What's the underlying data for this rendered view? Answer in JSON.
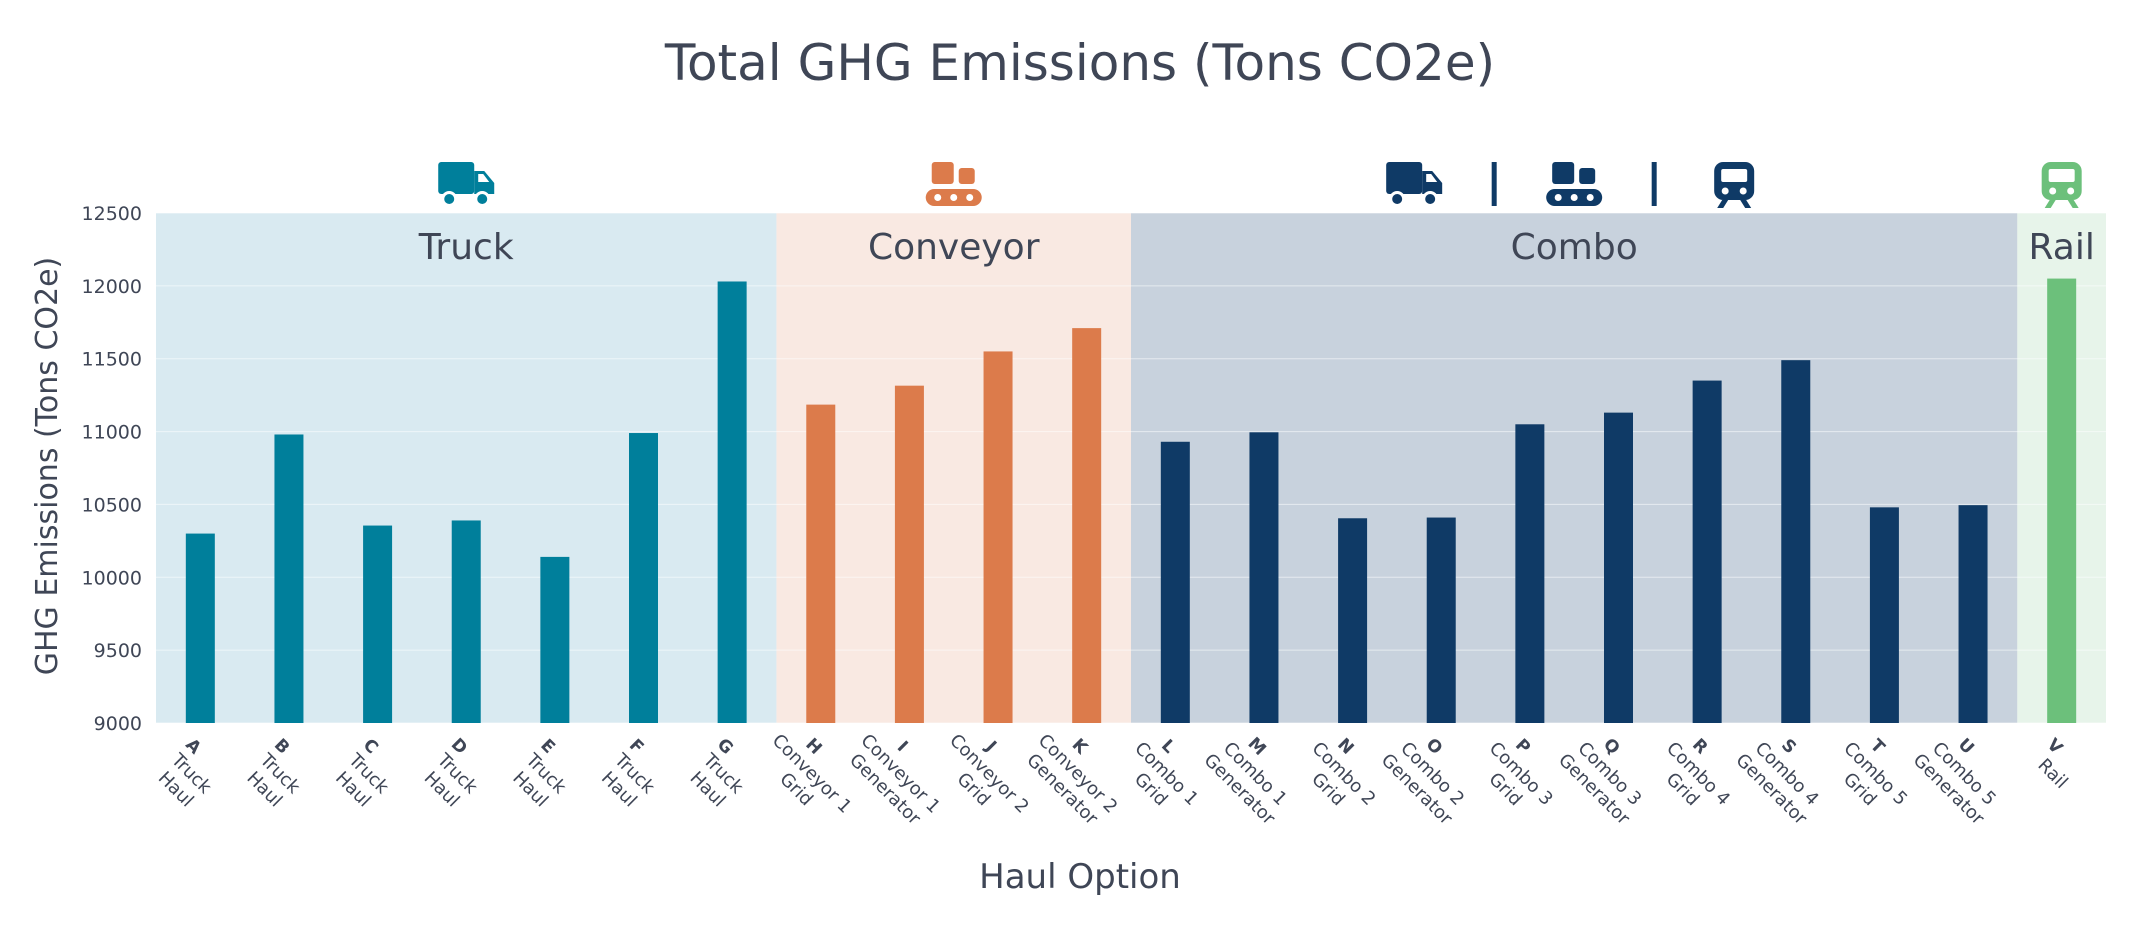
{
  "chart_data": {
    "type": "bar",
    "title": "Total GHG Emissions (Tons CO2e)",
    "xlabel": "Haul Option",
    "ylabel": "GHG Emissions (Tons CO2e)",
    "ylim": [
      9000,
      12500
    ],
    "yticks": [
      9000,
      9500,
      10000,
      10500,
      11000,
      11500,
      12000,
      12500
    ],
    "grid": true,
    "categories": [
      {
        "letter": "A",
        "line1": "Truck",
        "line2": "Haul"
      },
      {
        "letter": "B",
        "line1": "Truck",
        "line2": "Haul"
      },
      {
        "letter": "C",
        "line1": "Truck",
        "line2": "Haul"
      },
      {
        "letter": "D",
        "line1": "Truck",
        "line2": "Haul"
      },
      {
        "letter": "E",
        "line1": "Truck",
        "line2": "Haul"
      },
      {
        "letter": "F",
        "line1": "Truck",
        "line2": "Haul"
      },
      {
        "letter": "G",
        "line1": "Truck",
        "line2": "Haul"
      },
      {
        "letter": "H",
        "line1": "Conveyor 1",
        "line2": "Grid"
      },
      {
        "letter": "I",
        "line1": "Conveyor 1",
        "line2": "Generator"
      },
      {
        "letter": "J",
        "line1": "Conveyor 2",
        "line2": "Grid"
      },
      {
        "letter": "K",
        "line1": "Conveyor 2",
        "line2": "Generator"
      },
      {
        "letter": "L",
        "line1": "Combo 1",
        "line2": "Grid"
      },
      {
        "letter": "M",
        "line1": "Combo 1",
        "line2": "Generator"
      },
      {
        "letter": "N",
        "line1": "Combo 2",
        "line2": "Grid"
      },
      {
        "letter": "O",
        "line1": "Combo 2",
        "line2": "Generator"
      },
      {
        "letter": "P",
        "line1": "Combo 3",
        "line2": "Grid"
      },
      {
        "letter": "Q",
        "line1": "Combo 3",
        "line2": "Generator"
      },
      {
        "letter": "R",
        "line1": "Combo 4",
        "line2": "Grid"
      },
      {
        "letter": "S",
        "line1": "Combo 4",
        "line2": "Generator"
      },
      {
        "letter": "T",
        "line1": "Combo 5",
        "line2": "Grid"
      },
      {
        "letter": "U",
        "line1": "Combo 5",
        "line2": "Generator"
      },
      {
        "letter": "V",
        "line1": "Rail",
        "line2": ""
      }
    ],
    "values": [
      10300,
      10980,
      10355,
      10390,
      10140,
      10990,
      12030,
      11185,
      11315,
      11550,
      11710,
      10930,
      10995,
      10405,
      10410,
      11050,
      11130,
      11350,
      11490,
      10480,
      10495,
      12050
    ],
    "groups": [
      {
        "label": "Truck",
        "start": 0,
        "end": 6,
        "bar_color": "#007f9b",
        "bg_color": "#d9eaf1",
        "icons": [
          "truck-icon"
        ]
      },
      {
        "label": "Conveyor",
        "start": 7,
        "end": 10,
        "bar_color": "#dc7b4b",
        "bg_color": "#f9e9e2",
        "icons": [
          "conveyor-icon"
        ]
      },
      {
        "label": "Combo",
        "start": 11,
        "end": 20,
        "bar_color": "#0f3a66",
        "bg_color": "#c8d2dd",
        "icons": [
          "truck-icon",
          "conveyor-icon",
          "train-icon"
        ]
      },
      {
        "label": "Rail",
        "start": 21,
        "end": 21,
        "bar_color": "#6cc07b",
        "bg_color": "#e7f4ea",
        "icons": [
          "train-icon"
        ]
      }
    ]
  }
}
